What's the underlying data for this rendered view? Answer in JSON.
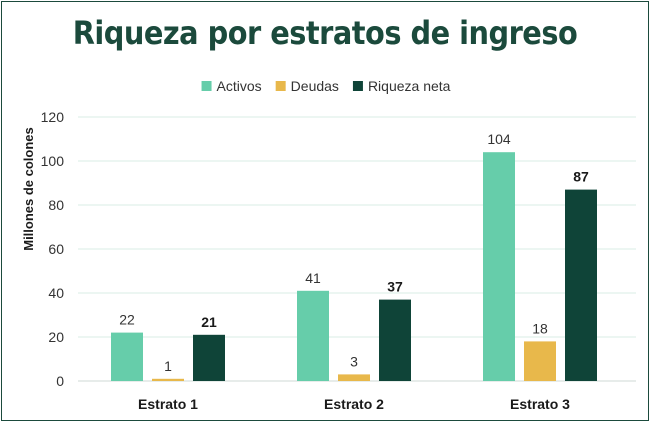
{
  "chart_data": {
    "type": "bar",
    "title": "Riqueza por estratos de ingreso",
    "xlabel": "",
    "ylabel": "Millones de colones",
    "ylim": [
      0,
      120
    ],
    "yticks": [
      0,
      20,
      40,
      60,
      80,
      100,
      120
    ],
    "categories": [
      "Estrato 1",
      "Estrato 2",
      "Estrato 3"
    ],
    "series": [
      {
        "name": "Activos",
        "values": [
          22,
          41,
          104
        ],
        "color": "#66cdaa",
        "label_bold": false
      },
      {
        "name": "Deudas",
        "values": [
          1,
          3,
          18
        ],
        "color": "#e8b84b",
        "label_bold": false
      },
      {
        "name": "Riqueza neta",
        "values": [
          21,
          37,
          87
        ],
        "color": "#0f4438",
        "label_bold": true
      }
    ],
    "legend_position": "top",
    "grid": true
  }
}
